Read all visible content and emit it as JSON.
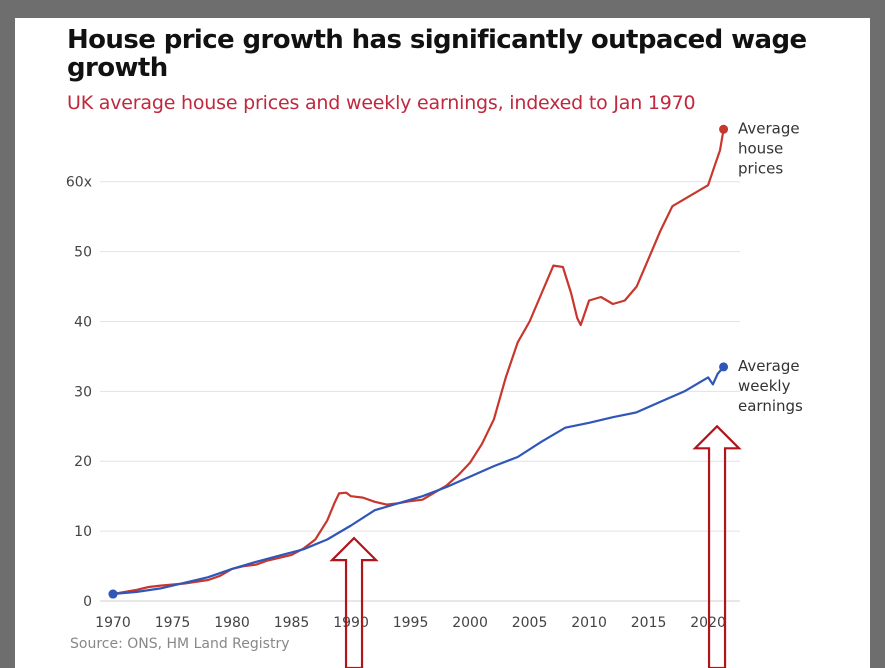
{
  "title": "House price growth has significantly outpaced wage growth",
  "subtitle": "UK average house prices and weekly earnings, indexed to Jan 1970",
  "source": "Source: ONS, HM Land Registry",
  "colors": {
    "house": "#c8372d",
    "earnings": "#2f56b8",
    "arrow": "#b0141c",
    "grid": "#e2e2e2",
    "frame": "#6e6e6e"
  },
  "chart_data": {
    "type": "line",
    "xlim": [
      1970,
      2021.5
    ],
    "ylim": [
      0,
      68
    ],
    "yticks": [
      0,
      10,
      20,
      30,
      40,
      50,
      60
    ],
    "ytick_labels": [
      "0",
      "10",
      "20",
      "30",
      "40",
      "50",
      "60x"
    ],
    "xticks": [
      1970,
      1975,
      1980,
      1985,
      1990,
      1995,
      2000,
      2005,
      2010,
      2015,
      2020
    ],
    "xtick_labels": [
      "1970",
      "1975",
      "1980",
      "1985",
      "1990",
      "1995",
      "2000",
      "2005",
      "2010",
      "2015",
      "2020"
    ],
    "grid": true,
    "series": [
      {
        "name": "Average house prices",
        "label_lines": [
          "Average",
          "house",
          "prices"
        ],
        "color": "#c8372d",
        "x": [
          1970,
          1972,
          1973,
          1974,
          1976,
          1978,
          1979,
          1980,
          1981,
          1982,
          1983,
          1985,
          1986,
          1987,
          1988,
          1988.6,
          1989,
          1989.6,
          1990,
          1991,
          1992,
          1993,
          1994,
          1995,
          1996,
          1997,
          1998,
          1999,
          2000,
          2001,
          2002,
          2003,
          2004,
          2005,
          2006,
          2007,
          2007.8,
          2008.5,
          2009,
          2009.3,
          2010,
          2011,
          2012,
          2013,
          2014,
          2015,
          2016,
          2017,
          2018,
          2019,
          2020,
          2020.5,
          2021,
          2021.3
        ],
        "values": [
          1.0,
          1.6,
          2.0,
          2.2,
          2.5,
          3.0,
          3.6,
          4.6,
          5.0,
          5.2,
          5.8,
          6.6,
          7.5,
          8.8,
          11.5,
          14.0,
          15.4,
          15.5,
          15.0,
          14.8,
          14.2,
          13.8,
          14.0,
          14.3,
          14.5,
          15.5,
          16.5,
          18.0,
          19.8,
          22.5,
          26.0,
          32.0,
          37.0,
          40.0,
          44.0,
          48.0,
          47.8,
          44.0,
          40.5,
          39.5,
          43.0,
          43.5,
          42.5,
          43.0,
          45.0,
          49.0,
          53.0,
          56.5,
          57.5,
          58.5,
          59.5,
          62.0,
          64.5,
          67.5
        ]
      },
      {
        "name": "Average weekly earnings",
        "label_lines": [
          "Average",
          "weekly",
          "earnings"
        ],
        "color": "#2f56b8",
        "x": [
          1970,
          1972,
          1974,
          1976,
          1978,
          1980,
          1982,
          1984,
          1986,
          1988,
          1990,
          1992,
          1994,
          1996,
          1998,
          2000,
          2002,
          2004,
          2006,
          2008,
          2010,
          2012,
          2014,
          2016,
          2018,
          2019,
          2020,
          2020.4,
          2020.8,
          2021.3
        ],
        "values": [
          1.0,
          1.3,
          1.8,
          2.6,
          3.4,
          4.6,
          5.6,
          6.5,
          7.4,
          8.8,
          10.8,
          13.0,
          14.0,
          15.0,
          16.3,
          17.8,
          19.3,
          20.6,
          22.8,
          24.8,
          25.5,
          26.3,
          27.0,
          28.5,
          30.0,
          31.0,
          32.0,
          31.0,
          32.5,
          33.5
        ]
      }
    ]
  },
  "annotations": [
    {
      "type": "arrow",
      "x": 1990,
      "y": 9
    },
    {
      "type": "arrow",
      "x": 2020.5,
      "y": 25
    }
  ]
}
